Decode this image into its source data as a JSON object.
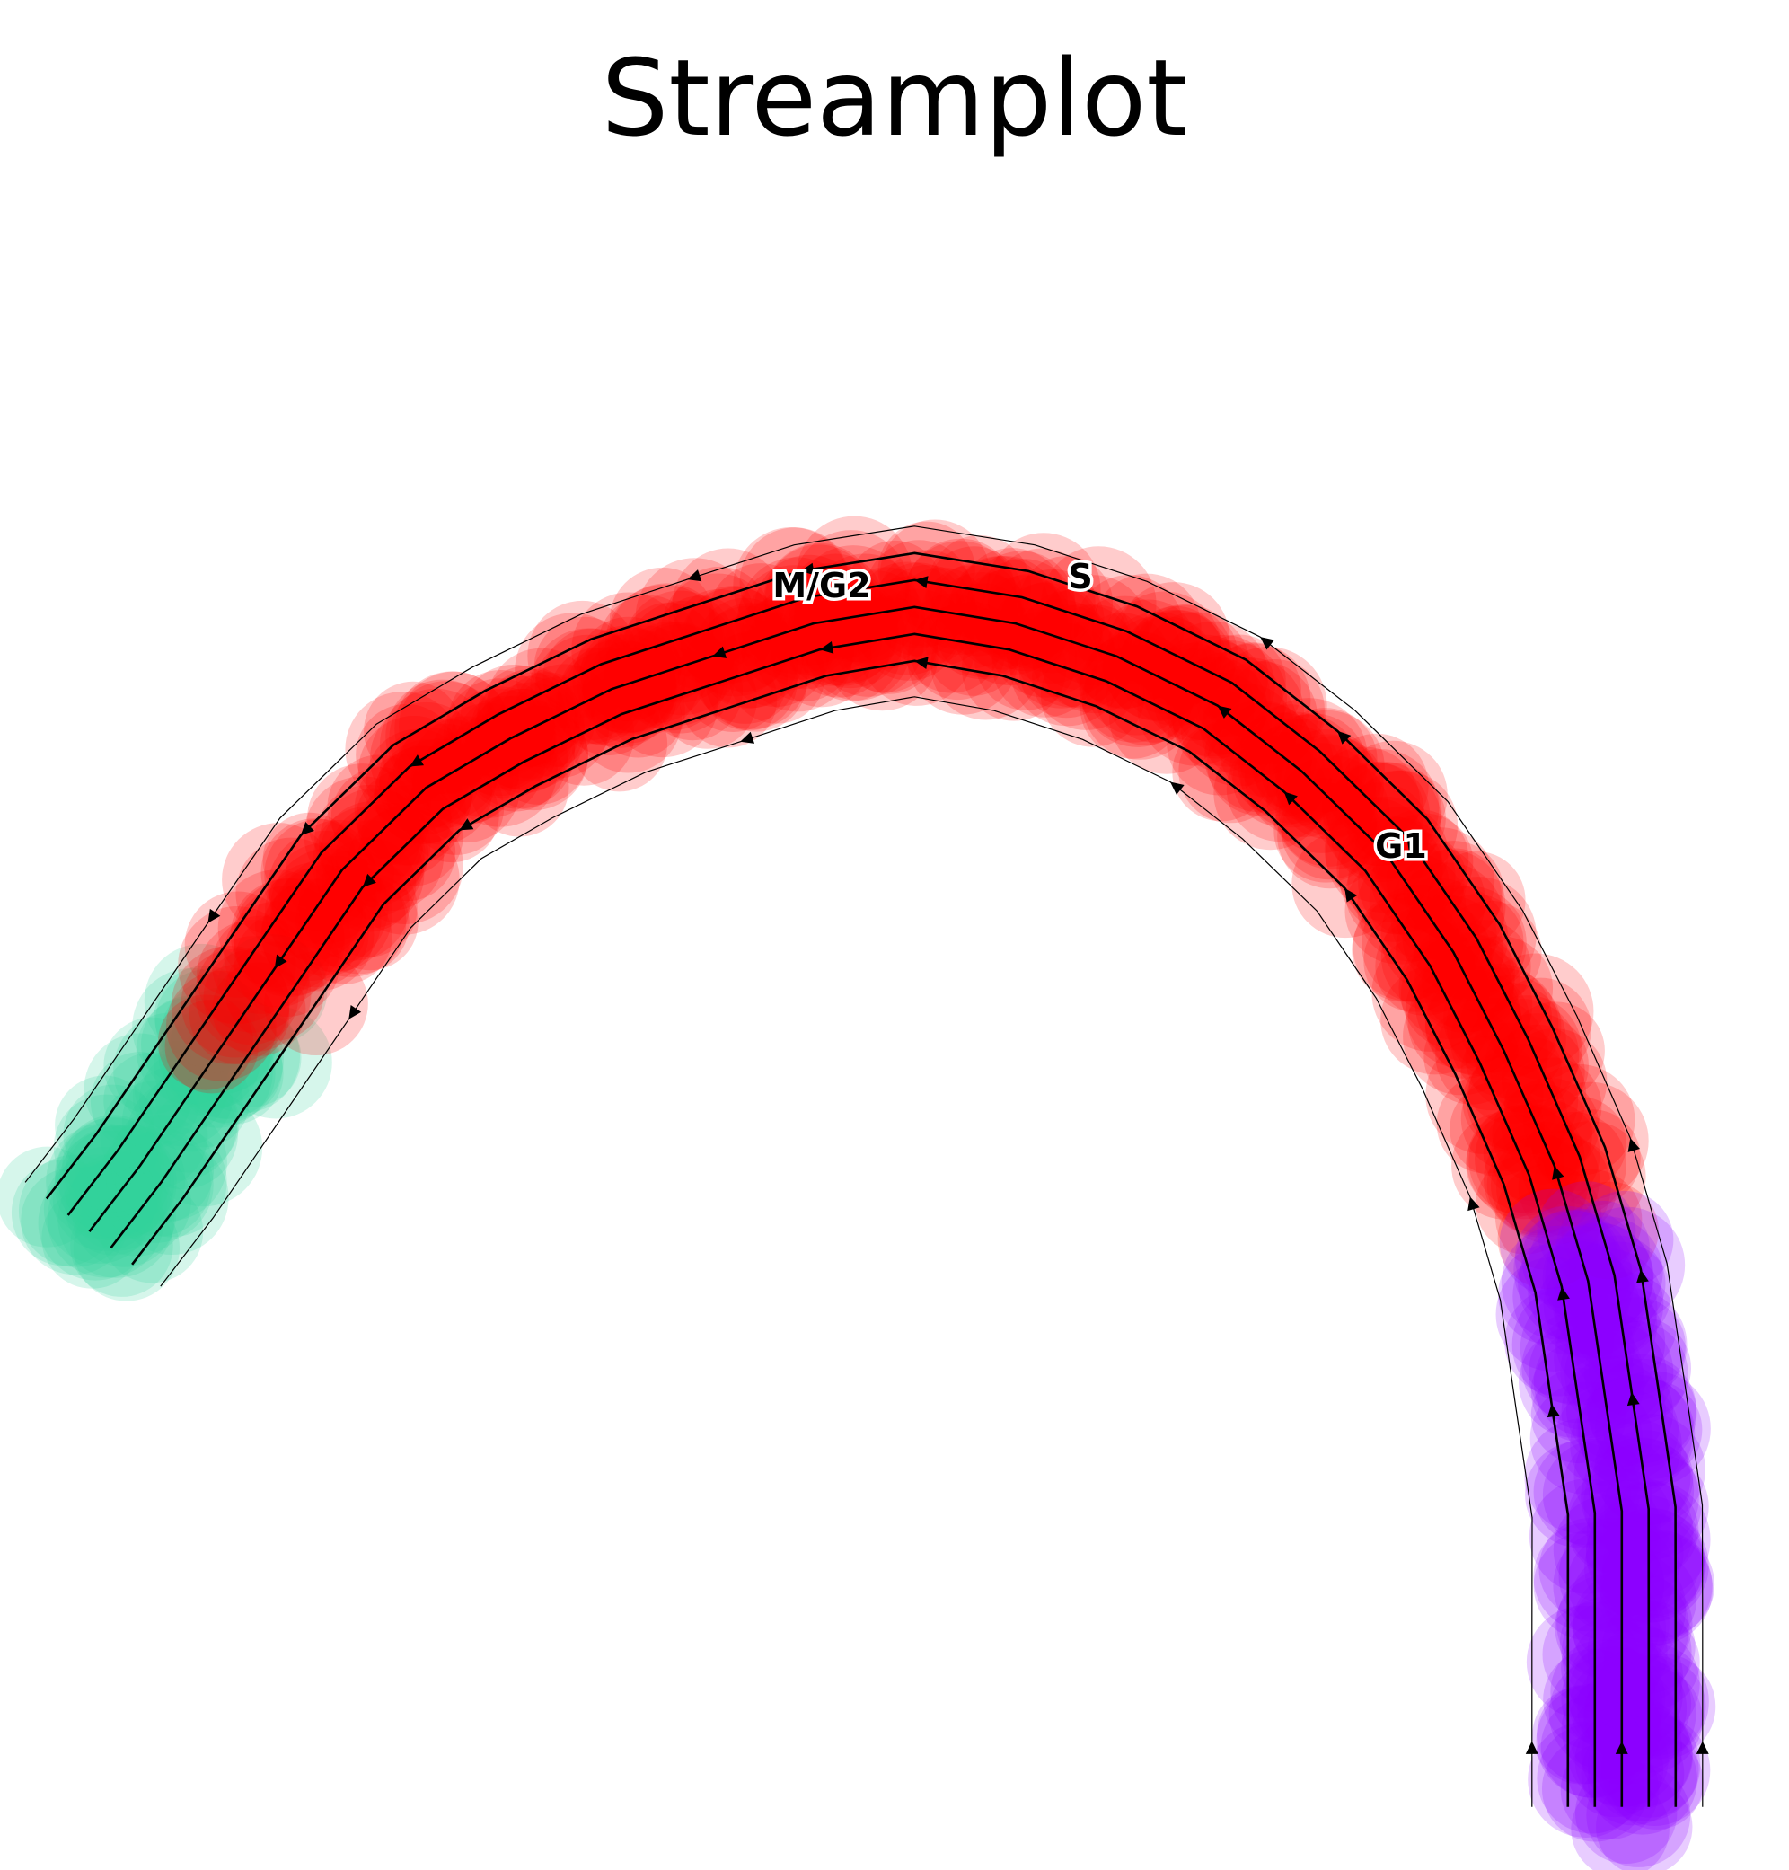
{
  "chart_data": {
    "type": "scatter",
    "title": "Streamplot",
    "xlabel": "",
    "ylabel": "",
    "axes_visible": false,
    "grid": false,
    "legend": "none",
    "cluster_labels": [
      {
        "name": "M/G2",
        "color": "#34d399"
      },
      {
        "name": "S",
        "color": "#ff0000"
      },
      {
        "name": "G1",
        "color": "#8b00ff"
      }
    ],
    "point_alpha": 0.2,
    "trajectory": [
      {
        "x": 0.02,
        "y": 0.36,
        "c": "M/G2"
      },
      {
        "x": 0.05,
        "y": 0.4,
        "c": "M/G2"
      },
      {
        "x": 0.09,
        "y": 0.46,
        "c": "M/G2"
      },
      {
        "x": 0.13,
        "y": 0.52,
        "c": "S"
      },
      {
        "x": 0.17,
        "y": 0.58,
        "c": "S"
      },
      {
        "x": 0.22,
        "y": 0.63,
        "c": "S"
      },
      {
        "x": 0.27,
        "y": 0.66,
        "c": "S"
      },
      {
        "x": 0.33,
        "y": 0.69,
        "c": "S"
      },
      {
        "x": 0.39,
        "y": 0.71,
        "c": "S"
      },
      {
        "x": 0.45,
        "y": 0.73,
        "c": "S"
      },
      {
        "x": 0.51,
        "y": 0.74,
        "c": "S"
      },
      {
        "x": 0.57,
        "y": 0.73,
        "c": "S"
      },
      {
        "x": 0.63,
        "y": 0.71,
        "c": "S"
      },
      {
        "x": 0.69,
        "y": 0.68,
        "c": "S"
      },
      {
        "x": 0.74,
        "y": 0.64,
        "c": "S"
      },
      {
        "x": 0.79,
        "y": 0.59,
        "c": "S"
      },
      {
        "x": 0.83,
        "y": 0.53,
        "c": "S"
      },
      {
        "x": 0.86,
        "y": 0.47,
        "c": "S"
      },
      {
        "x": 0.89,
        "y": 0.4,
        "c": "S"
      },
      {
        "x": 0.91,
        "y": 0.33,
        "c": "G1"
      },
      {
        "x": 0.92,
        "y": 0.26,
        "c": "G1"
      },
      {
        "x": 0.93,
        "y": 0.19,
        "c": "G1"
      },
      {
        "x": 0.93,
        "y": 0.12,
        "c": "G1"
      },
      {
        "x": 0.93,
        "y": 0.05,
        "c": "G1"
      },
      {
        "x": 0.93,
        "y": 0.01,
        "c": "G1"
      }
    ]
  }
}
